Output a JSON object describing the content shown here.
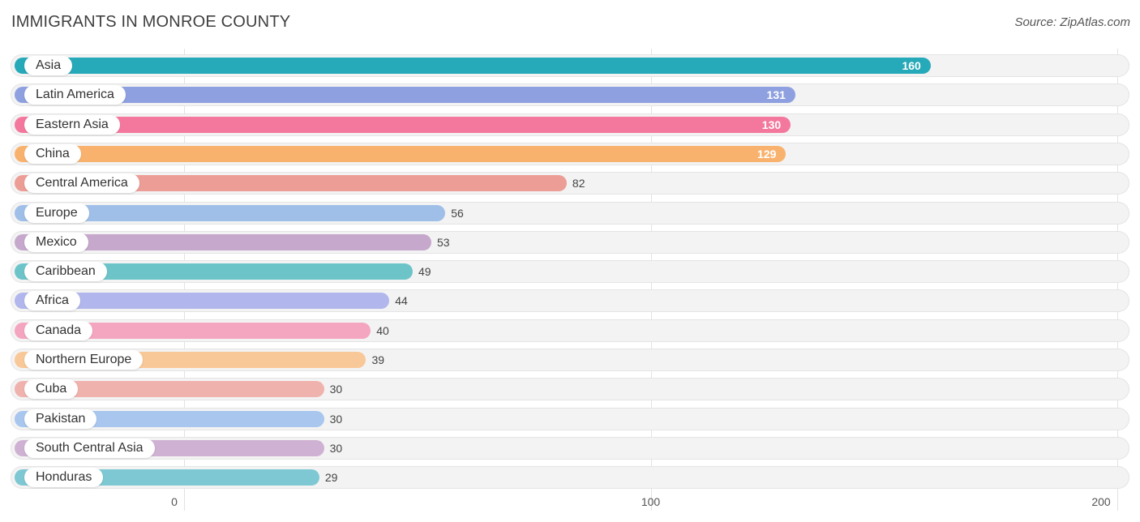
{
  "title": "IMMIGRANTS IN MONROE COUNTY",
  "source": "Source: ZipAtlas.com",
  "chart_data": {
    "type": "bar",
    "orientation": "horizontal",
    "title": "IMMIGRANTS IN MONROE COUNTY",
    "xlim": [
      0,
      200
    ],
    "ticks": [
      "0",
      "100",
      "200"
    ],
    "categories": [
      "Asia",
      "Latin America",
      "Eastern Asia",
      "China",
      "Central America",
      "Europe",
      "Mexico",
      "Caribbean",
      "Africa",
      "Canada",
      "Northern Europe",
      "Cuba",
      "Pakistan",
      "South Central Asia",
      "Honduras"
    ],
    "values": [
      160,
      131,
      130,
      129,
      82,
      56,
      53,
      49,
      44,
      40,
      39,
      30,
      30,
      30,
      29
    ],
    "value_labels": [
      "160",
      "131",
      "130",
      "129",
      "82",
      "56",
      "53",
      "49",
      "44",
      "40",
      "39",
      "30",
      "30",
      "30",
      "29"
    ],
    "colors": [
      "#26a9b8",
      "#8fa0e0",
      "#f4789e",
      "#f9b26e",
      "#ec9e96",
      "#9fbfe8",
      "#c5a8cc",
      "#6cc4c9",
      "#b1b7ec",
      "#f4a5bf",
      "#f9c898",
      "#f0b2ad",
      "#a8c6ee",
      "#cfb2d3",
      "#7ec8d3"
    ],
    "grid": true
  }
}
